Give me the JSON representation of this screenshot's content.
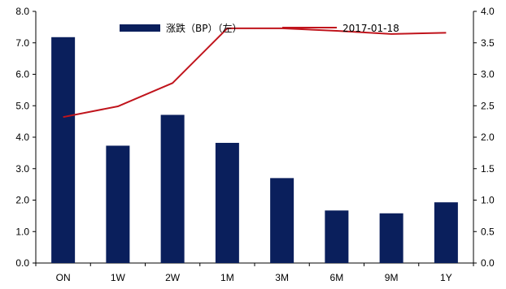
{
  "chart_data": {
    "type": "bar",
    "categories": [
      "ON",
      "1W",
      "2W",
      "1M",
      "3M",
      "6M",
      "9M",
      "1Y"
    ],
    "series": [
      {
        "name": "涨跌（BP）（左）",
        "type": "bar",
        "axis": "left",
        "color": "#0a1f5c",
        "values": [
          7.18,
          3.73,
          4.71,
          3.82,
          2.7,
          1.67,
          1.58,
          1.93
        ]
      },
      {
        "name": "2017-01-18",
        "type": "line",
        "axis": "right",
        "color": "#c0141c",
        "values": [
          2.32,
          2.49,
          2.86,
          3.73,
          3.73,
          3.69,
          3.64,
          3.66
        ]
      }
    ],
    "y_left": {
      "ylim": [
        0,
        8
      ],
      "ticks": [
        "0.0",
        "1.0",
        "2.0",
        "3.0",
        "4.0",
        "5.0",
        "6.0",
        "7.0",
        "8.0"
      ]
    },
    "y_right": {
      "ylim": [
        0,
        4
      ],
      "ticks": [
        "0.0",
        "0.5",
        "1.0",
        "1.5",
        "2.0",
        "2.5",
        "3.0",
        "3.5",
        "4.0"
      ]
    },
    "title": "",
    "xlabel": "",
    "ylabel": "",
    "grid": false,
    "legend_placement": "top-center"
  }
}
